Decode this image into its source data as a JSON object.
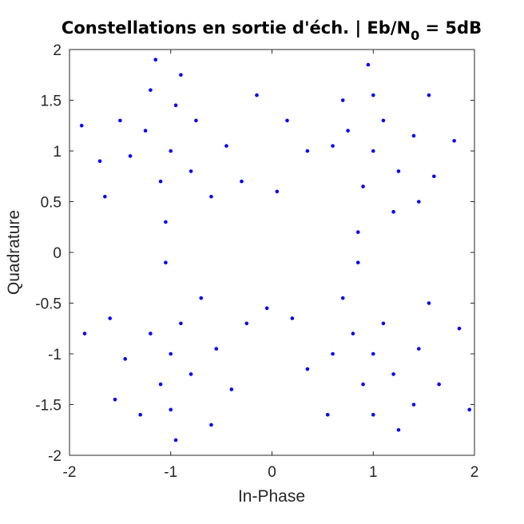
{
  "chart_data": {
    "type": "scatter",
    "title": "Constellations en sortie d'éch. | Eb/N",
    "title_subscript": "0",
    "title_suffix": " = 5dB",
    "xlabel": "In-Phase",
    "ylabel": "Quadrature",
    "xlim": [
      -2,
      2
    ],
    "ylim": [
      -2,
      2
    ],
    "xticks": [
      -2,
      -1,
      0,
      1,
      2
    ],
    "xtick_labels": [
      "-2",
      "-1",
      "0",
      "1",
      "2"
    ],
    "yticks": [
      -2,
      -1.5,
      -1,
      -0.5,
      0,
      0.5,
      1,
      1.5,
      2
    ],
    "ytick_labels": [
      "-2",
      "-1.5",
      "-1",
      "-0.5",
      "0",
      "0.5",
      "1",
      "1.5",
      "2"
    ],
    "grid": false,
    "marker_color": "#0000ff",
    "series": [
      {
        "points": [
          [
            -1,
            1
          ],
          [
            1,
            1
          ],
          [
            -1,
            -1
          ],
          [
            1,
            -1
          ],
          [
            -1.25,
            1.2
          ],
          [
            -0.8,
            0.8
          ],
          [
            -1.1,
            0.7
          ],
          [
            -0.75,
            1.3
          ],
          [
            -1.4,
            0.95
          ],
          [
            -0.95,
            1.45
          ],
          [
            -1.5,
            1.3
          ],
          [
            -0.45,
            1.05
          ],
          [
            -1.7,
            0.9
          ],
          [
            -0.6,
            0.55
          ],
          [
            -1.2,
            1.6
          ],
          [
            -0.9,
            1.75
          ],
          [
            -0.15,
            1.55
          ],
          [
            -1.88,
            1.25
          ],
          [
            -1.05,
            0.3
          ],
          [
            -0.3,
            0.7
          ],
          [
            -1.65,
            0.55
          ],
          [
            -1.15,
            1.9
          ],
          [
            0.75,
            1.2
          ],
          [
            1.25,
            0.8
          ],
          [
            1.1,
            1.3
          ],
          [
            0.9,
            0.65
          ],
          [
            0.6,
            1.05
          ],
          [
            1.4,
            1.15
          ],
          [
            1.0,
            1.55
          ],
          [
            0.7,
            1.5
          ],
          [
            1.6,
            0.75
          ],
          [
            0.35,
            1.0
          ],
          [
            0.15,
            1.3
          ],
          [
            1.8,
            1.1
          ],
          [
            1.2,
            0.4
          ],
          [
            0.85,
            0.2
          ],
          [
            1.55,
            1.55
          ],
          [
            0.95,
            1.85
          ],
          [
            0.05,
            0.6
          ],
          [
            1.45,
            0.5
          ],
          [
            -0.8,
            -1.2
          ],
          [
            -1.2,
            -0.8
          ],
          [
            -1.1,
            -1.3
          ],
          [
            -0.9,
            -0.7
          ],
          [
            -1.45,
            -1.05
          ],
          [
            -0.55,
            -0.95
          ],
          [
            -1.0,
            -1.55
          ],
          [
            -0.7,
            -0.45
          ],
          [
            -1.6,
            -0.65
          ],
          [
            -0.4,
            -1.35
          ],
          [
            -1.85,
            -0.8
          ],
          [
            -0.25,
            -0.7
          ],
          [
            -1.3,
            -1.6
          ],
          [
            -0.95,
            -1.85
          ],
          [
            -1.05,
            -0.1
          ],
          [
            -1.55,
            -1.45
          ],
          [
            -0.6,
            -1.7
          ],
          [
            -0.05,
            -0.55
          ],
          [
            0.8,
            -0.8
          ],
          [
            1.2,
            -1.2
          ],
          [
            1.1,
            -0.7
          ],
          [
            0.9,
            -1.3
          ],
          [
            0.6,
            -1.0
          ],
          [
            1.45,
            -0.95
          ],
          [
            1.0,
            -1.6
          ],
          [
            0.7,
            -0.45
          ],
          [
            1.65,
            -1.3
          ],
          [
            0.35,
            -1.15
          ],
          [
            1.85,
            -0.75
          ],
          [
            0.2,
            -0.65
          ],
          [
            1.25,
            -1.75
          ],
          [
            0.55,
            -1.6
          ],
          [
            1.55,
            -0.5
          ],
          [
            0.85,
            -0.1
          ],
          [
            1.95,
            -1.55
          ],
          [
            1.4,
            -1.5
          ]
        ]
      }
    ]
  }
}
